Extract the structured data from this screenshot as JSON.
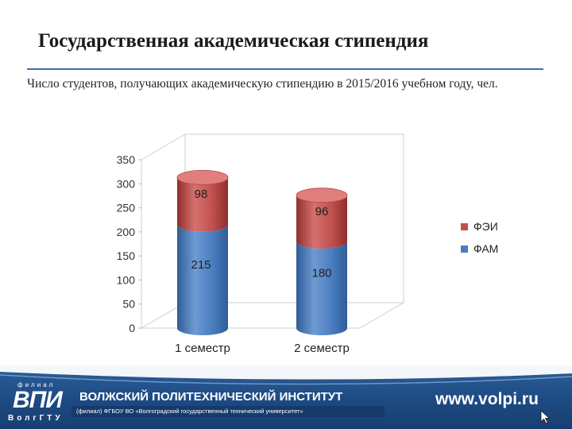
{
  "slide": {
    "title": "Государственная академическая стипендия",
    "subtitle": "Число студентов, получающих академическую стипендию в 2015/2016 учебном году, чел."
  },
  "chart_data": {
    "type": "bar",
    "stacked": true,
    "style": "3d-cylinder",
    "categories": [
      "1 семестр",
      "2 семестр"
    ],
    "series": [
      {
        "name": "ФАМ",
        "values": [
          215,
          180
        ],
        "color": "#4a7dbf"
      },
      {
        "name": "ФЭИ",
        "values": [
          98,
          96
        ],
        "color": "#c0504d"
      }
    ],
    "ylim": [
      0,
      350
    ],
    "yticks": [
      0,
      50,
      100,
      150,
      200,
      250,
      300,
      350
    ],
    "legend": "right",
    "grid": false
  },
  "footer": {
    "logo_filial": "филиал",
    "logo_main": "ВПИ",
    "logo_sub": "ВолгГТУ",
    "institute": "ВОЛЖСКИЙ ПОЛИТЕХНИЧЕСКИЙ ИНСТИТУТ",
    "institute_sub": "(филиал) ФГБОУ ВО «Волгоградский государственный технический университет»",
    "website": "www.volpi.ru",
    "cursor_icon": "cursor-arrow-icon"
  }
}
